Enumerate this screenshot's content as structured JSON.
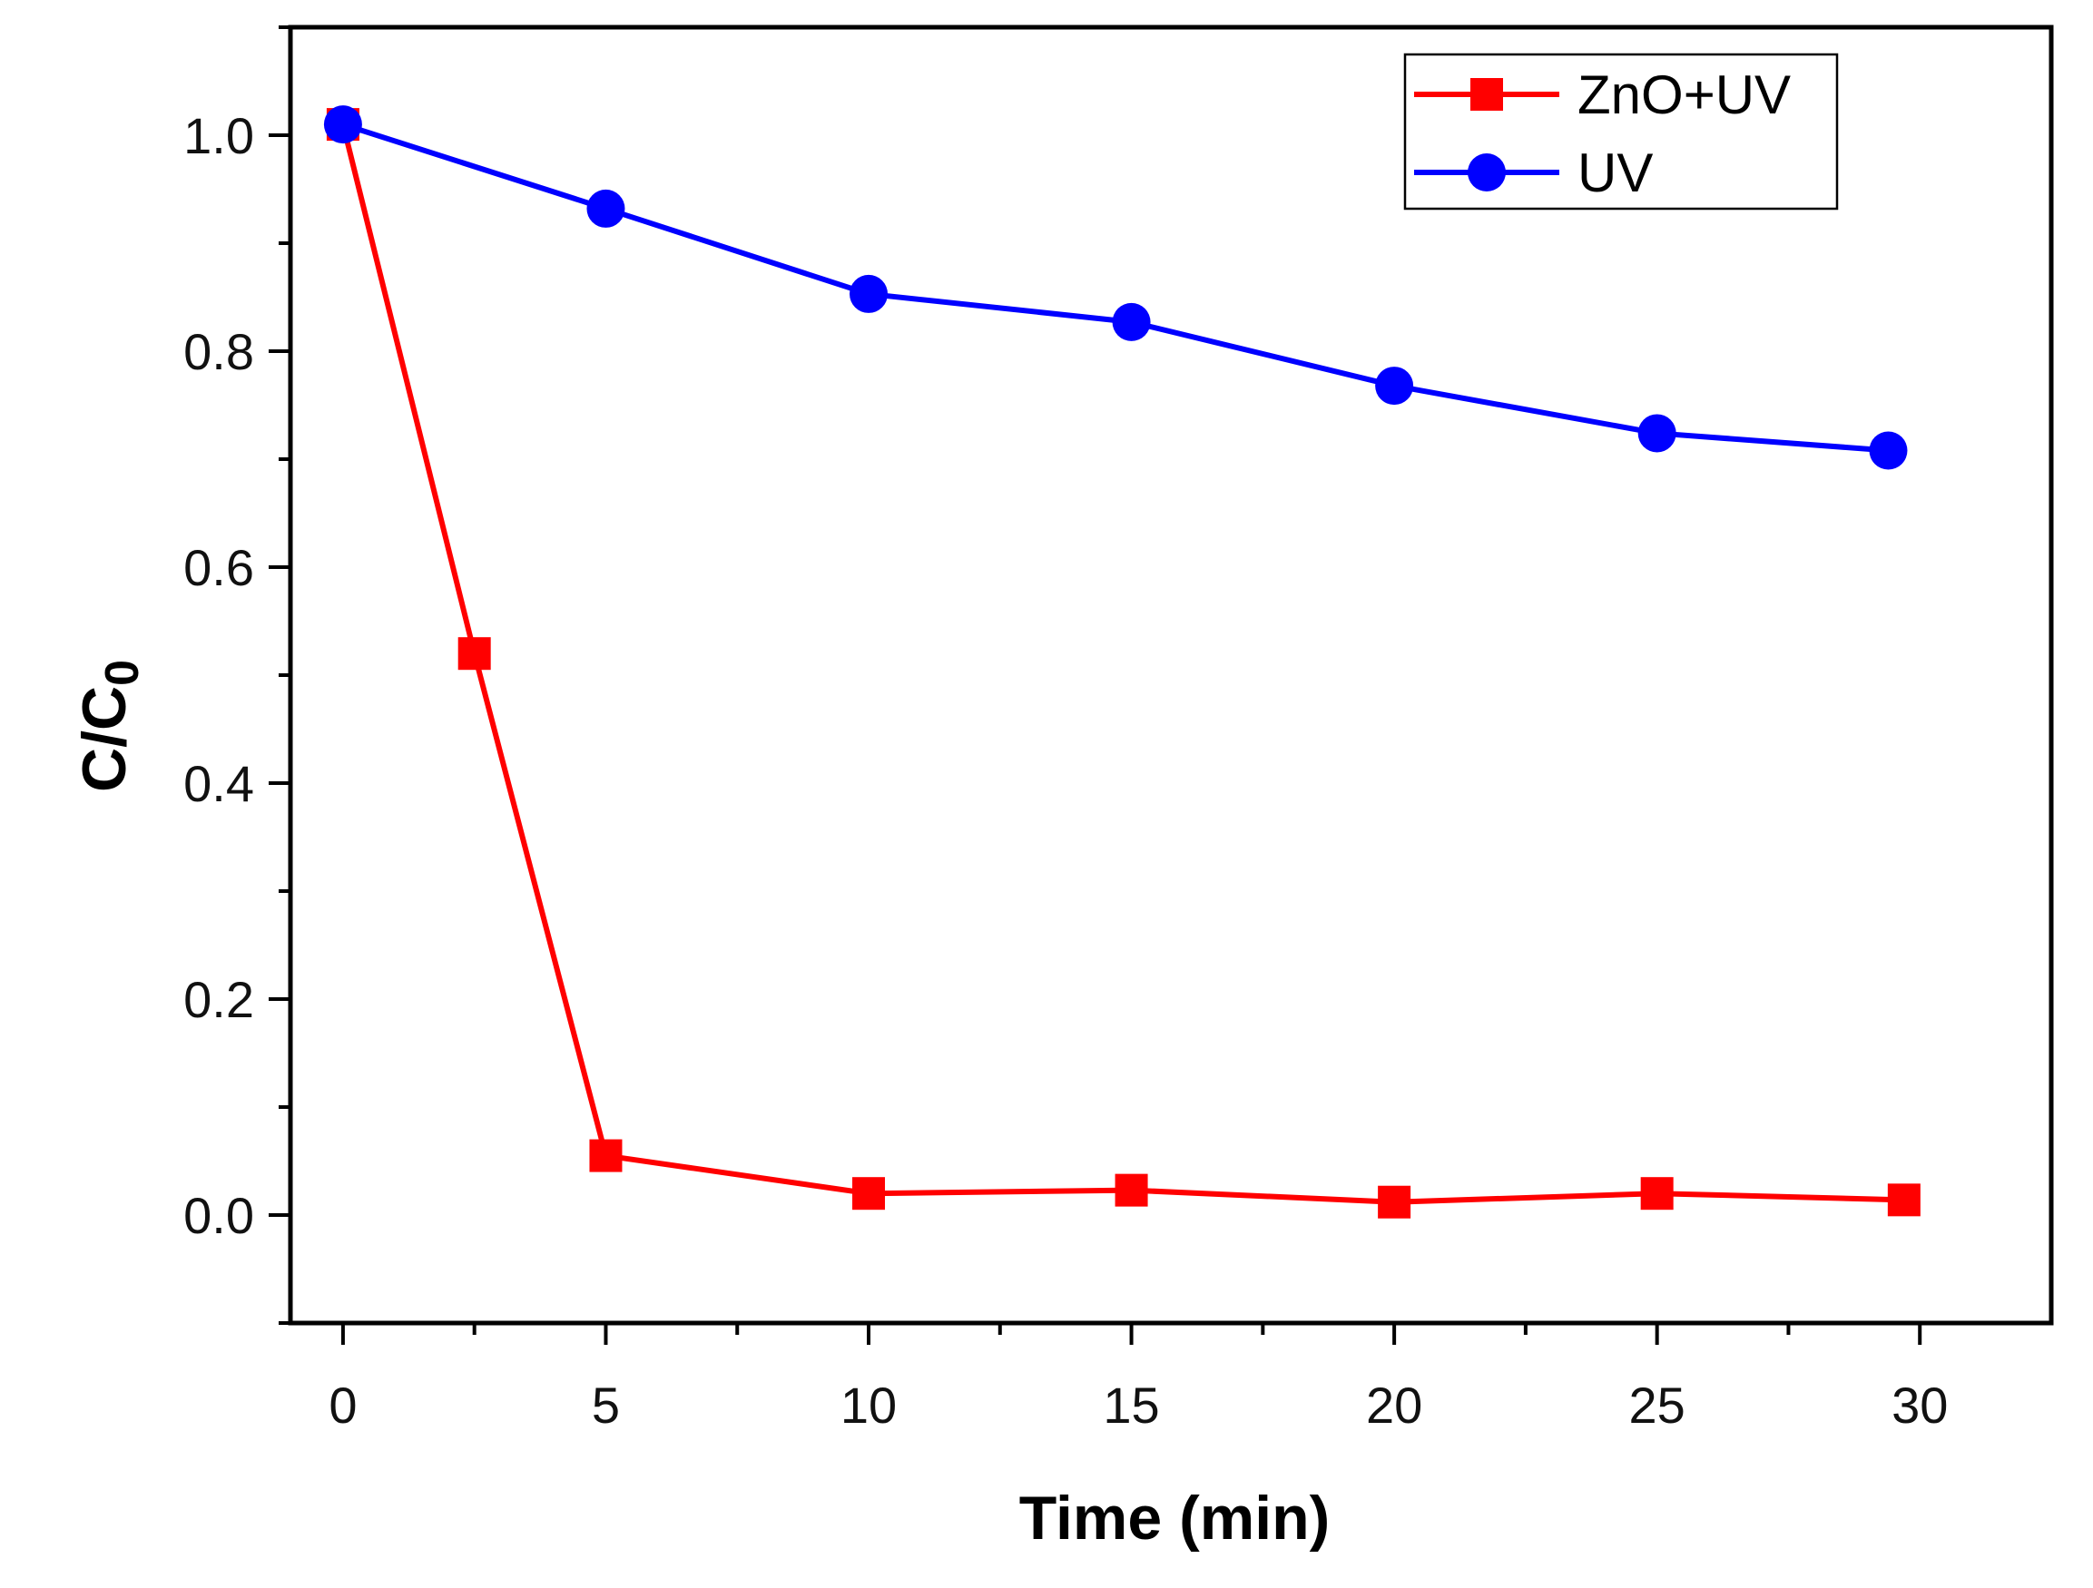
{
  "chart_data": {
    "type": "line",
    "title": "",
    "xlabel": "Time (min)",
    "ylabel": "C/C",
    "ylabel_subscript": "0",
    "xlim": [
      -1,
      32.5
    ],
    "ylim": [
      -0.1,
      1.1
    ],
    "xticks": [
      0,
      5,
      10,
      15,
      20,
      25,
      30
    ],
    "xtick_labels": [
      "0",
      "5",
      "10",
      "15",
      "20",
      "25",
      "30"
    ],
    "yticks": [
      0.0,
      0.2,
      0.4,
      0.6,
      0.8,
      1.0
    ],
    "ytick_labels": [
      "0.0",
      "0.2",
      "0.4",
      "0.6",
      "0.8",
      "1.0"
    ],
    "grid": false,
    "legend_position": "top-right",
    "series": [
      {
        "name": "ZnO+UV",
        "color": "#ff0000",
        "marker": "square",
        "x": [
          0,
          2.5,
          5,
          10,
          15,
          20,
          25,
          29.7
        ],
        "y": [
          1.01,
          0.52,
          0.055,
          0.02,
          0.023,
          0.012,
          0.02,
          0.014
        ]
      },
      {
        "name": "UV",
        "color": "#0000ff",
        "marker": "circle",
        "x": [
          0,
          5,
          10,
          15,
          20,
          25,
          29.4
        ],
        "y": [
          1.01,
          0.932,
          0.853,
          0.827,
          0.768,
          0.724,
          0.708
        ]
      }
    ]
  }
}
